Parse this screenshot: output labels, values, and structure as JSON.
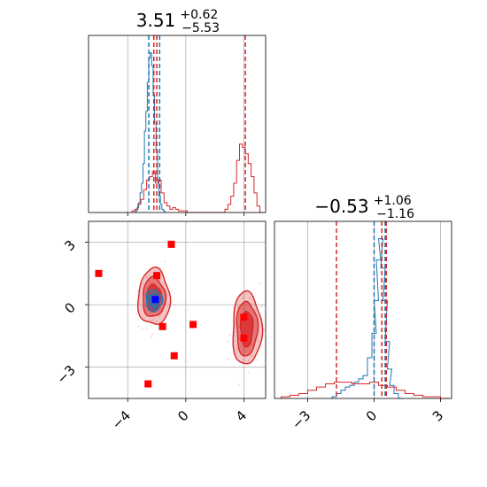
{
  "chart_data": [
    {
      "panel": "marginal-x",
      "type": "histogram",
      "title": {
        "value": "3.51",
        "plus": "+0.62",
        "minus": "−5.53"
      },
      "xlim": [
        -6.7,
        5.5
      ],
      "series": [
        {
          "name": "",
          "color": "#1f77b4",
          "x": [
            -3.4,
            -3.3,
            -3.2,
            -3.1,
            -3.0,
            -2.9,
            -2.8,
            -2.7,
            -2.6,
            -2.5,
            -2.4,
            -2.3,
            -2.2,
            -2.1,
            -2.0,
            -1.9,
            -1.8,
            -1.7,
            -1.6,
            -1.5,
            -1.4
          ],
          "density": [
            0.01,
            0.03,
            0.06,
            0.12,
            0.18,
            0.3,
            0.5,
            0.62,
            0.8,
            0.95,
            0.98,
            0.9,
            0.72,
            0.55,
            0.38,
            0.2,
            0.1,
            0.05,
            0.02,
            0.01,
            0.0
          ]
        },
        {
          "name": "",
          "color": "#d62728",
          "x": [
            -3.6,
            -3.4,
            -3.2,
            -3.0,
            -2.8,
            -2.6,
            -2.4,
            -2.2,
            -2.0,
            -1.8,
            -1.6,
            -1.4,
            -1.2,
            -1.0,
            -0.8,
            -0.6,
            -0.4,
            -0.2,
            0.0,
            0.2,
            2.8,
            3.0,
            3.2,
            3.4,
            3.6,
            3.8,
            4.0,
            4.2,
            4.4,
            4.6,
            4.8,
            5.0,
            5.2
          ],
          "density": [
            0.01,
            0.02,
            0.05,
            0.08,
            0.14,
            0.2,
            0.22,
            0.25,
            0.18,
            0.2,
            0.12,
            0.06,
            0.04,
            0.02,
            0.03,
            0.02,
            0.01,
            0.01,
            0.01,
            0.0,
            0.02,
            0.05,
            0.1,
            0.18,
            0.32,
            0.42,
            0.4,
            0.36,
            0.3,
            0.22,
            0.12,
            0.04,
            0.0
          ]
        }
      ],
      "vlines": [
        {
          "color": "#1f77b4",
          "x": [
            -2.55,
            -1.8
          ]
        },
        {
          "color": "#d62728",
          "x": [
            -2.2,
            -2.0,
            4.1
          ]
        }
      ]
    },
    {
      "panel": "marginal-y",
      "type": "histogram",
      "title": {
        "value": "−0.53",
        "plus": "+1.06",
        "minus": "−1.16"
      },
      "xlim": [
        -4.5,
        3.5
      ],
      "xticks": [
        -3,
        0,
        3
      ],
      "xticklabels": [
        "−3",
        "0",
        "3"
      ],
      "series": [
        {
          "name": "",
          "color": "#1f77b4",
          "x": [
            -1.8,
            -1.6,
            -1.4,
            -1.2,
            -1.0,
            -0.8,
            -0.6,
            -0.4,
            -0.2,
            0.0,
            0.1,
            0.2,
            0.3,
            0.4,
            0.5,
            0.6,
            0.7,
            0.8,
            1.0,
            1.2
          ],
          "density": [
            0.01,
            0.03,
            0.05,
            0.07,
            0.08,
            0.1,
            0.12,
            0.14,
            0.25,
            0.4,
            0.6,
            0.85,
            0.98,
            0.8,
            0.6,
            0.35,
            0.18,
            0.08,
            0.03,
            0.0
          ]
        },
        {
          "name": "",
          "color": "#d62728",
          "x": [
            -4.0,
            -3.6,
            -3.2,
            -2.8,
            -2.4,
            -2.0,
            -1.6,
            -1.2,
            -0.8,
            -0.4,
            0.0,
            0.4,
            0.8,
            1.2,
            1.6,
            2.0,
            2.4,
            2.8,
            3.2
          ],
          "density": [
            0.01,
            0.02,
            0.03,
            0.05,
            0.07,
            0.09,
            0.1,
            0.1,
            0.09,
            0.09,
            0.1,
            0.08,
            0.07,
            0.05,
            0.03,
            0.02,
            0.01,
            0.01,
            0.0
          ]
        }
      ],
      "vlines": [
        {
          "color": "#1f77b4",
          "x": [
            0.0,
            0.5
          ]
        },
        {
          "color": "#d62728",
          "x": [
            -1.7,
            0.35,
            0.55
          ]
        }
      ]
    },
    {
      "panel": "joint",
      "type": "scatter",
      "xlim": [
        -6.7,
        5.5
      ],
      "ylim": [
        -4.5,
        4.0
      ],
      "xticks": [
        -4,
        0,
        4
      ],
      "xticklabels": [
        "−4",
        "0",
        "4"
      ],
      "yticks": [
        -3,
        0,
        3
      ],
      "yticklabels": [
        "−3",
        "0",
        "3"
      ],
      "contours": [
        {
          "color": "#d62728",
          "center": [
            -2.2,
            0.35
          ],
          "radii": [
            [
              1.1,
              1.35
            ],
            [
              0.78,
              0.95
            ],
            [
              0.48,
              0.62
            ]
          ]
        },
        {
          "color": "#d62728",
          "center": [
            4.2,
            -1.15
          ],
          "radii": [
            [
              1.0,
              1.75
            ],
            [
              0.72,
              1.3
            ],
            [
              0.42,
              0.85
            ]
          ]
        },
        {
          "color": "#1f77b4",
          "center": [
            -2.2,
            0.2
          ],
          "radii": [
            [
              0.55,
              0.52
            ],
            [
              0.35,
              0.34
            ],
            [
              0.18,
              0.18
            ]
          ]
        }
      ],
      "points": [
        {
          "x": -6.0,
          "y": 1.5,
          "color": "#ff0000"
        },
        {
          "x": -1.0,
          "y": 2.9,
          "color": "#ff0000"
        },
        {
          "x": -2.0,
          "y": 1.4,
          "color": "#ff0000"
        },
        {
          "x": -1.6,
          "y": -1.05,
          "color": "#ff0000"
        },
        {
          "x": 0.5,
          "y": -0.95,
          "color": "#ff0000"
        },
        {
          "x": -0.8,
          "y": -2.45,
          "color": "#ff0000"
        },
        {
          "x": -2.6,
          "y": -3.8,
          "color": "#ff0000"
        },
        {
          "x": 4.0,
          "y": -0.6,
          "color": "#ff0000"
        },
        {
          "x": 4.0,
          "y": -1.6,
          "color": "#ff0000"
        },
        {
          "x": -2.1,
          "y": 0.25,
          "color": "#0000ff"
        }
      ]
    }
  ]
}
